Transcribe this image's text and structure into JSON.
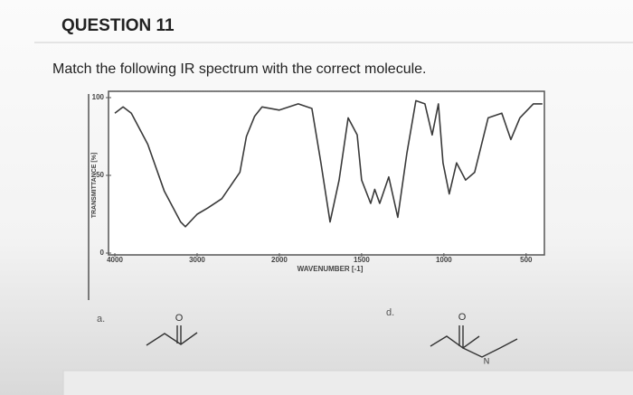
{
  "header": {
    "title": "QUESTION 11"
  },
  "question": {
    "prompt": "Match the following IR spectrum with the correct molecule.",
    "options": [
      {
        "label": "a.",
        "atoms": [
          "O"
        ]
      },
      {
        "label": "d.",
        "atoms": [
          "O",
          "N"
        ]
      }
    ]
  },
  "chart_data": {
    "type": "line",
    "x_label": "WAVENUMBER [-1]",
    "y_label": "TRANSMITTANCE [%]",
    "x": [
      4000,
      3900,
      3800,
      3600,
      3400,
      3200,
      3143,
      3000,
      2870,
      2700,
      2480,
      2400,
      2300,
      2210,
      2000,
      1885,
      1802,
      1747,
      1692,
      1637,
      1582,
      1527,
      1500,
      1445,
      1420,
      1390,
      1335,
      1280,
      1225,
      1170,
      1115,
      1071,
      1033,
      1005,
      967,
      923,
      868,
      813,
      731,
      648,
      593,
      538,
      456,
      401
    ],
    "values": [
      90,
      94,
      90,
      70,
      40,
      20,
      17,
      25,
      29,
      35,
      52,
      75,
      88,
      94,
      92,
      96,
      93,
      58,
      20,
      47,
      87,
      76,
      47,
      32,
      41,
      32,
      49,
      23,
      64,
      98,
      96,
      76,
      96,
      58,
      38,
      58,
      47,
      52,
      87,
      90,
      73,
      87,
      96,
      96
    ],
    "color": "#3a3a3a",
    "xlim": [
      4000,
      400
    ],
    "ylim": [
      0,
      100
    ],
    "xticks": [
      4000,
      3000,
      2000,
      1500,
      1000,
      500
    ],
    "yticks": [
      0,
      50,
      100
    ],
    "x_scale_break": 2000
  }
}
